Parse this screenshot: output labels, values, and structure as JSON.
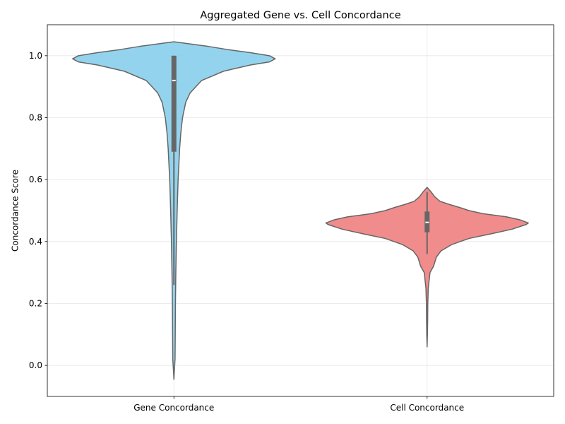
{
  "chart_data": {
    "type": "violin",
    "title": "Aggregated Gene vs. Cell Concordance",
    "xlabel": "",
    "ylabel": "Concordance Score",
    "ylim": [
      -0.1,
      1.1
    ],
    "yticks": [
      0.0,
      0.2,
      0.4,
      0.6,
      0.8,
      1.0
    ],
    "yticklabels": [
      "0.0",
      "0.2",
      "0.4",
      "0.6",
      "0.8",
      "1.0"
    ],
    "grid": true,
    "categories": [
      "Gene Concordance",
      "Cell Concordance"
    ],
    "series": [
      {
        "category": "Gene Concordance",
        "color": "#87CEEB",
        "median": 0.92,
        "q1": 0.69,
        "q3": 1.0,
        "whisker_low": 0.26,
        "whisker_high": 1.0,
        "min": -0.045,
        "max": 1.045,
        "density_profile": [
          [
            -0.045,
            0.0
          ],
          [
            -0.02,
            0.02
          ],
          [
            0.02,
            0.06
          ],
          [
            0.1,
            0.07
          ],
          [
            0.2,
            0.08
          ],
          [
            0.3,
            0.1
          ],
          [
            0.4,
            0.13
          ],
          [
            0.5,
            0.17
          ],
          [
            0.6,
            0.22
          ],
          [
            0.7,
            0.3
          ],
          [
            0.75,
            0.36
          ],
          [
            0.8,
            0.45
          ],
          [
            0.85,
            0.62
          ],
          [
            0.88,
            0.85
          ],
          [
            0.92,
            1.45
          ],
          [
            0.95,
            2.6
          ],
          [
            0.97,
            4.0
          ],
          [
            0.98,
            5.0
          ],
          [
            0.99,
            5.3
          ],
          [
            1.0,
            5.0
          ],
          [
            1.01,
            4.0
          ],
          [
            1.02,
            2.8
          ],
          [
            1.03,
            1.8
          ],
          [
            1.04,
            0.6
          ],
          [
            1.045,
            0.0
          ]
        ]
      },
      {
        "category": "Cell Concordance",
        "color": "#F08080",
        "median": 0.462,
        "q1": 0.43,
        "q3": 0.497,
        "whisker_low": 0.36,
        "whisker_high": 0.56,
        "min": 0.06,
        "max": 0.575,
        "density_profile": [
          [
            0.06,
            0.0
          ],
          [
            0.1,
            0.03
          ],
          [
            0.15,
            0.05
          ],
          [
            0.2,
            0.06
          ],
          [
            0.25,
            0.1
          ],
          [
            0.3,
            0.25
          ],
          [
            0.32,
            0.55
          ],
          [
            0.35,
            0.8
          ],
          [
            0.37,
            1.2
          ],
          [
            0.39,
            2.1
          ],
          [
            0.41,
            3.6
          ],
          [
            0.425,
            5.5
          ],
          [
            0.44,
            7.3
          ],
          [
            0.455,
            8.5
          ],
          [
            0.46,
            8.7
          ],
          [
            0.47,
            8.0
          ],
          [
            0.48,
            6.8
          ],
          [
            0.49,
            4.8
          ],
          [
            0.5,
            3.6
          ],
          [
            0.51,
            2.8
          ],
          [
            0.52,
            1.9
          ],
          [
            0.53,
            1.1
          ],
          [
            0.545,
            0.65
          ],
          [
            0.56,
            0.35
          ],
          [
            0.575,
            0.0
          ]
        ]
      }
    ]
  }
}
